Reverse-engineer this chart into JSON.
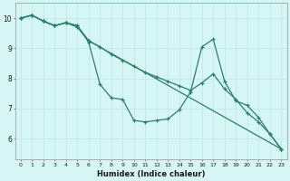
{
  "xlabel": "Humidex (Indice chaleur)",
  "bg_color": "#d6f5f5",
  "line_color": "#2d7d6e",
  "grid_color": "#c0e8e8",
  "line1_x": [
    0,
    1,
    2,
    3,
    4,
    5,
    6,
    7,
    8,
    9,
    10,
    11,
    12,
    13,
    14,
    15,
    16,
    17,
    18,
    19,
    20,
    21,
    22,
    23
  ],
  "line1_y": [
    10.0,
    10.1,
    9.9,
    9.75,
    9.85,
    9.75,
    9.2,
    7.8,
    7.35,
    7.3,
    6.6,
    6.55,
    6.6,
    6.65,
    6.95,
    7.55,
    9.05,
    9.3,
    7.9,
    7.25,
    7.1,
    6.7,
    6.15,
    5.65
  ],
  "line2_x": [
    0,
    1,
    2,
    3,
    4,
    5,
    6,
    7,
    8,
    9,
    10,
    11,
    12,
    13,
    14,
    15,
    16,
    17,
    18,
    19,
    20,
    21,
    22,
    23
  ],
  "line2_y": [
    10.0,
    10.1,
    9.9,
    9.75,
    9.85,
    9.75,
    9.25,
    9.05,
    8.8,
    8.6,
    8.4,
    8.2,
    8.05,
    7.9,
    7.75,
    7.6,
    7.85,
    8.15,
    7.65,
    7.3,
    6.85,
    6.55,
    6.15,
    5.65
  ],
  "line3_x": [
    0,
    1,
    2,
    3,
    4,
    5,
    6,
    23
  ],
  "line3_y": [
    10.0,
    10.1,
    9.9,
    9.75,
    9.85,
    9.7,
    9.25,
    5.65
  ],
  "xlim": [
    -0.5,
    23.5
  ],
  "ylim": [
    5.3,
    10.5
  ],
  "yticks": [
    6,
    7,
    8,
    9,
    10
  ],
  "xticks": [
    0,
    1,
    2,
    3,
    4,
    5,
    6,
    7,
    8,
    9,
    10,
    11,
    12,
    13,
    14,
    15,
    16,
    17,
    18,
    19,
    20,
    21,
    22,
    23
  ]
}
